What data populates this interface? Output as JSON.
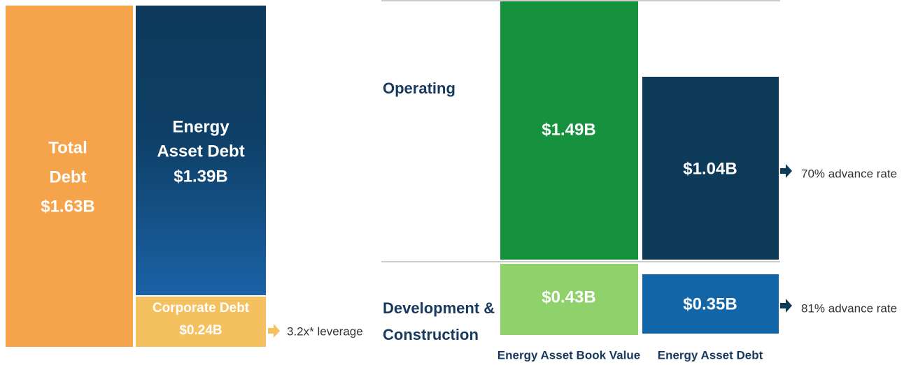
{
  "left": {
    "total": {
      "lines": [
        "Total",
        "Debt",
        "$1.63B"
      ]
    },
    "energy_asset_debt": {
      "lines": [
        "Energy",
        "Asset Debt",
        "$1.39B"
      ]
    },
    "corporate_debt": {
      "lines": [
        "Corporate Debt",
        "$0.24B"
      ]
    },
    "leverage": "3.2x* leverage"
  },
  "right": {
    "row_labels": {
      "operating": [
        "Operating"
      ],
      "development": [
        "Development &",
        "Construction"
      ]
    },
    "book_value": {
      "operating": "$1.49B",
      "development": "$0.43B",
      "label": "Energy Asset Book Value"
    },
    "debt": {
      "operating": "$1.04B",
      "development": "$0.35B",
      "label": "Energy Asset Debt"
    },
    "advance_rates": {
      "operating": "70% advance rate",
      "development": "81% advance rate"
    }
  }
}
